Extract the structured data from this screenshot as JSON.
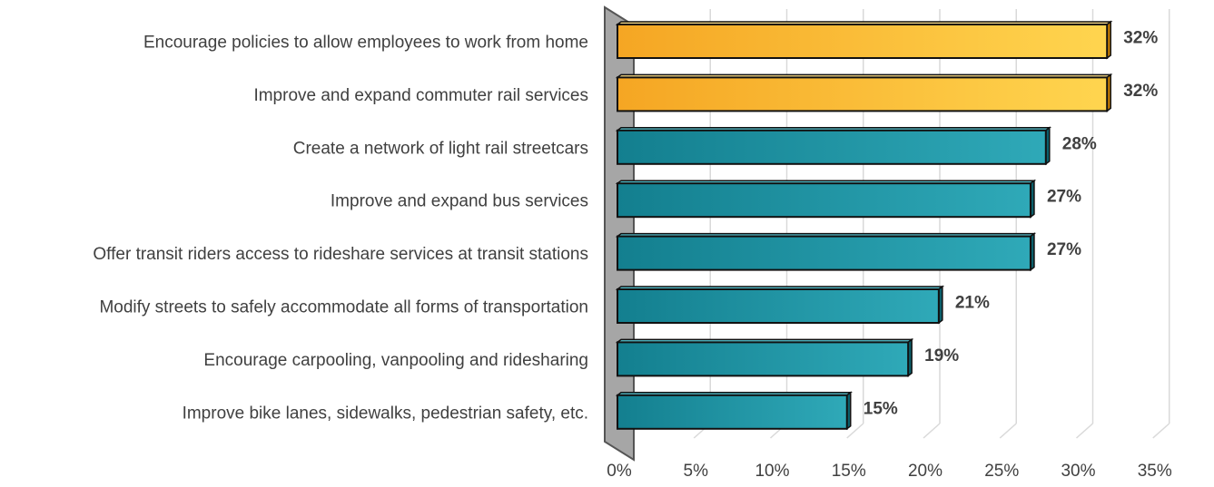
{
  "chart_data": {
    "type": "bar",
    "orientation": "horizontal",
    "title": "",
    "xlabel": "",
    "ylabel": "",
    "categories": [
      "Encourage policies to allow employees to work from home",
      "Improve and expand commuter rail services",
      "Create a network of light rail streetcars",
      "Improve and expand bus services",
      "Offer transit riders access to rideshare services at transit stations",
      "Modify streets to safely accommodate all forms of transportation",
      "Encourage carpooling, vanpooling and ridesharing",
      "Improve bike lanes, sidewalks, pedestrian safety, etc."
    ],
    "values": [
      32,
      32,
      28,
      27,
      27,
      21,
      19,
      15
    ],
    "data_labels": [
      "32%",
      "32%",
      "28%",
      "27%",
      "27%",
      "21%",
      "19%",
      "15%"
    ],
    "highlighted": [
      true,
      true,
      false,
      false,
      false,
      false,
      false,
      false
    ],
    "xlim": [
      0,
      35
    ],
    "xticks": [
      0,
      5,
      10,
      15,
      20,
      25,
      30,
      35
    ],
    "xtick_labels": [
      "0%",
      "5%",
      "10%",
      "15%",
      "20%",
      "25%",
      "30%",
      "35%"
    ],
    "grid": true,
    "legend": "none",
    "style": "3d-bars",
    "colors": {
      "highlight_dark": "#f5a623",
      "highlight_light": "#ffd54f",
      "base_dark": "#137f8f",
      "base_light": "#2fa9b8",
      "wall": "#a6a6a6",
      "grid": "#d9d9d9",
      "text": "#404040"
    }
  }
}
